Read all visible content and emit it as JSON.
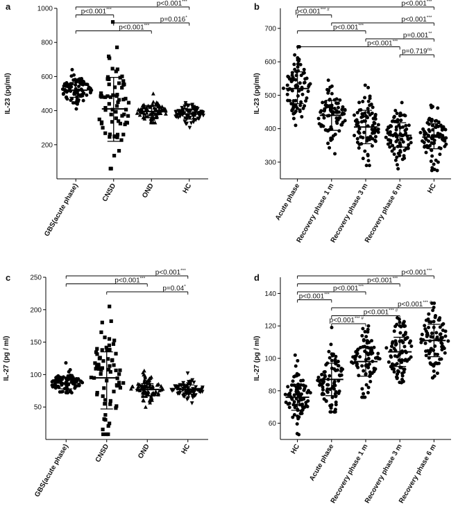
{
  "chart_data": [
    {
      "panel": "a",
      "type": "scatter",
      "ylabel": "IL-23 (pg/ml)",
      "ylim": [
        0,
        1000
      ],
      "yticks": [
        200,
        400,
        600,
        800,
        1000
      ],
      "categories": [
        "GBS(acute phase)",
        "CNSD",
        "OND",
        "HC"
      ],
      "marker": [
        "circle",
        "square",
        "triangle-up",
        "triangle-down"
      ],
      "series": [
        {
          "name": "GBS(acute phase)",
          "n": 85,
          "center": 520,
          "spread": 45,
          "min": 410,
          "max": 640,
          "mean": 520,
          "sd_low": 478,
          "sd_high": 565
        },
        {
          "name": "CNSD",
          "n": 70,
          "center": 410,
          "spread": 150,
          "min": 60,
          "max": 920,
          "mean": 410,
          "sd_low": 220,
          "sd_high": 595
        },
        {
          "name": "OND",
          "n": 80,
          "center": 395,
          "spread": 30,
          "min": 330,
          "max": 500,
          "mean": 395,
          "sd_low": 360,
          "sd_high": 430
        },
        {
          "name": "HC",
          "n": 80,
          "center": 380,
          "spread": 25,
          "min": 300,
          "max": 445,
          "mean": 380,
          "sd_low": 350,
          "sd_high": 410
        }
      ],
      "comparisons": [
        {
          "from": 0,
          "to": 3,
          "p": "p<0.001",
          "sig": "***"
        },
        {
          "from": 0,
          "to": 1,
          "p": "p<0.001",
          "sig": "***"
        },
        {
          "from": 1,
          "to": 3,
          "p": "p=0.016",
          "sig": "*"
        },
        {
          "from": 0,
          "to": 2,
          "p": "p<0.001",
          "sig": "***"
        }
      ]
    },
    {
      "panel": "b",
      "type": "scatter",
      "ylabel": "IL-23 (pg/ml)",
      "ylim": [
        250,
        760
      ],
      "yticks": [
        300,
        400,
        500,
        600,
        700
      ],
      "categories": [
        "Acute phase",
        "Recovery phase 1 m",
        "Recovery phase 3 m",
        "Recovery phase 6 m",
        "HC"
      ],
      "marker": [
        "circle",
        "circle",
        "circle",
        "circle",
        "circle"
      ],
      "series": [
        {
          "name": "Acute phase",
          "n": 85,
          "center": 520,
          "spread": 45,
          "min": 410,
          "max": 645,
          "mean": 520,
          "sd_low": 475,
          "sd_high": 570
        },
        {
          "name": "Recovery phase 1 m",
          "n": 85,
          "center": 440,
          "spread": 45,
          "min": 325,
          "max": 545,
          "mean": 440,
          "sd_low": 395,
          "sd_high": 485
        },
        {
          "name": "Recovery phase 3 m",
          "n": 85,
          "center": 405,
          "spread": 50,
          "min": 290,
          "max": 530,
          "mean": 405,
          "sd_low": 355,
          "sd_high": 455
        },
        {
          "name": "Recovery phase 6 m",
          "n": 85,
          "center": 380,
          "spread": 38,
          "min": 280,
          "max": 478,
          "mean": 380,
          "sd_low": 345,
          "sd_high": 418
        },
        {
          "name": "HC",
          "n": 85,
          "center": 375,
          "spread": 38,
          "min": 275,
          "max": 470,
          "mean": 375,
          "sd_low": 340,
          "sd_high": 415
        }
      ],
      "comparisons": [
        {
          "from": 0,
          "to": 4,
          "p": "p<0.001",
          "sig": "***"
        },
        {
          "from": 0,
          "to": 1,
          "p": "p<0.001",
          "sig": "*** #"
        },
        {
          "from": 1,
          "to": 4,
          "p": "p<0.001",
          "sig": "***"
        },
        {
          "from": 0,
          "to": 2,
          "p": "p<0.001",
          "sig": "***"
        },
        {
          "from": 2,
          "to": 4,
          "p": "p=0.001",
          "sig": "**"
        },
        {
          "from": 0,
          "to": 3,
          "p": "p<0.001",
          "sig": "***"
        },
        {
          "from": 3,
          "to": 4,
          "p": "p=0.719",
          "sig": "ns"
        }
      ]
    },
    {
      "panel": "c",
      "type": "scatter",
      "ylabel": "IL-27 (pg / ml)",
      "ylim": [
        0,
        250
      ],
      "yticks": [
        50,
        100,
        150,
        200,
        250
      ],
      "categories": [
        "GBS(acute phase)",
        "CNSD",
        "OND",
        "HC"
      ],
      "marker": [
        "circle",
        "square",
        "triangle-up",
        "triangle-down"
      ],
      "series": [
        {
          "name": "GBS(acute phase)",
          "n": 85,
          "center": 87,
          "spread": 8,
          "min": 72,
          "max": 118,
          "mean": 87,
          "sd_low": 78,
          "sd_high": 95
        },
        {
          "name": "CNSD",
          "n": 70,
          "center": 95,
          "spread": 40,
          "min": 8,
          "max": 205,
          "mean": 95,
          "sd_low": 47,
          "sd_high": 135
        },
        {
          "name": "OND",
          "n": 80,
          "center": 77,
          "spread": 9,
          "min": 50,
          "max": 106,
          "mean": 77,
          "sd_low": 67,
          "sd_high": 86
        },
        {
          "name": "HC",
          "n": 80,
          "center": 77,
          "spread": 7,
          "min": 56,
          "max": 102,
          "mean": 77,
          "sd_low": 70,
          "sd_high": 84
        }
      ],
      "comparisons": [
        {
          "from": 0,
          "to": 3,
          "p": "p<0.001",
          "sig": "***"
        },
        {
          "from": 0,
          "to": 2,
          "p": "p<0.001",
          "sig": "***"
        },
        {
          "from": 1,
          "to": 3,
          "p": "p=0.04",
          "sig": "*"
        }
      ]
    },
    {
      "panel": "d",
      "type": "scatter",
      "ylabel": "IL-27 (pg / ml)",
      "ylim": [
        50,
        150
      ],
      "yticks": [
        60,
        80,
        100,
        120,
        140
      ],
      "categories": [
        "HC",
        "Acute phase",
        "Recovery phase 1 m",
        "Recovery phase 3 m",
        "Recovery phase 6 m"
      ],
      "marker": [
        "circle",
        "circle",
        "circle",
        "circle",
        "circle"
      ],
      "series": [
        {
          "name": "HC",
          "n": 85,
          "center": 76,
          "spread": 7,
          "min": 53,
          "max": 102,
          "mean": 76,
          "sd_low": 68,
          "sd_high": 84
        },
        {
          "name": "Acute phase",
          "n": 85,
          "center": 87,
          "spread": 10,
          "min": 67,
          "max": 119,
          "mean": 87,
          "sd_low": 77,
          "sd_high": 97
        },
        {
          "name": "Recovery phase 1 m",
          "n": 85,
          "center": 98,
          "spread": 9,
          "min": 76,
          "max": 120,
          "mean": 98,
          "sd_low": 89,
          "sd_high": 107
        },
        {
          "name": "Recovery phase 3 m",
          "n": 85,
          "center": 104,
          "spread": 9,
          "min": 85,
          "max": 125,
          "mean": 104,
          "sd_low": 95,
          "sd_high": 113
        },
        {
          "name": "Recovery phase 6 m",
          "n": 85,
          "center": 111,
          "spread": 10,
          "min": 88,
          "max": 134,
          "mean": 111,
          "sd_low": 101,
          "sd_high": 121
        }
      ],
      "comparisons": [
        {
          "from": 0,
          "to": 4,
          "p": "p<0.001",
          "sig": "***"
        },
        {
          "from": 0,
          "to": 3,
          "p": "p<0.001",
          "sig": "***"
        },
        {
          "from": 0,
          "to": 2,
          "p": "p<0.001",
          "sig": "***"
        },
        {
          "from": 0,
          "to": 1,
          "p": "p<0.001",
          "sig": "***"
        },
        {
          "from": 1,
          "to": 4,
          "p": "p<0.001",
          "sig": "*** #"
        },
        {
          "from": 1,
          "to": 3,
          "p": "p<0.001",
          "sig": "*** #"
        },
        {
          "from": 1,
          "to": 2,
          "p": "p<0.001",
          "sig": "*** #"
        }
      ]
    }
  ]
}
